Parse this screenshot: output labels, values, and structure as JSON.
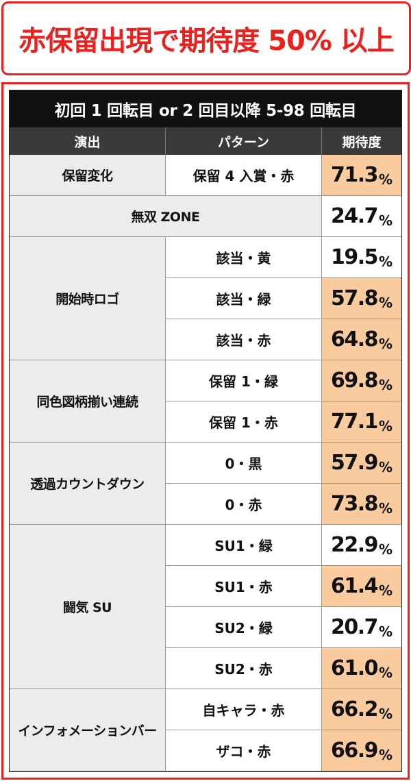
{
  "headline": "赤保留出現で期待度 50% 以上",
  "table": {
    "title": "初回 1 回転目 or 2 回目以降 5-98 回転目",
    "headers": [
      "演出",
      "パターン",
      "期待度"
    ],
    "highlight_color": "#fbcba0",
    "rows": [
      {
        "group": 0,
        "pattern": "保留 4 入賞・赤",
        "value": "71.3",
        "unit": "%",
        "highlight": true
      },
      {
        "group": 1,
        "pattern": "",
        "value": "24.7",
        "unit": "%",
        "highlight": false
      },
      {
        "group": 2,
        "pattern": "該当・黄",
        "value": "19.5",
        "unit": "%",
        "highlight": false
      },
      {
        "group": 2,
        "pattern": "該当・緑",
        "value": "57.8",
        "unit": "%",
        "highlight": true
      },
      {
        "group": 2,
        "pattern": "該当・赤",
        "value": "64.8",
        "unit": "%",
        "highlight": true
      },
      {
        "group": 3,
        "pattern": "保留 1・緑",
        "value": "69.8",
        "unit": "%",
        "highlight": true
      },
      {
        "group": 3,
        "pattern": "保留 1・赤",
        "value": "77.1",
        "unit": "%",
        "highlight": true
      },
      {
        "group": 4,
        "pattern": "0・黒",
        "value": "57.9",
        "unit": "%",
        "highlight": true
      },
      {
        "group": 4,
        "pattern": "0・赤",
        "value": "73.8",
        "unit": "%",
        "highlight": true
      },
      {
        "group": 5,
        "pattern": "SU1・緑",
        "value": "22.9",
        "unit": "%",
        "highlight": false
      },
      {
        "group": 5,
        "pattern": "SU1・赤",
        "value": "61.4",
        "unit": "%",
        "highlight": true
      },
      {
        "group": 5,
        "pattern": "SU2・緑",
        "value": "20.7",
        "unit": "%",
        "highlight": false
      },
      {
        "group": 5,
        "pattern": "SU2・赤",
        "value": "61.0",
        "unit": "%",
        "highlight": true
      },
      {
        "group": 6,
        "pattern": "自キャラ・赤",
        "value": "66.2",
        "unit": "%",
        "highlight": true
      },
      {
        "group": 6,
        "pattern": "ザコ・赤",
        "value": "66.9",
        "unit": "%",
        "highlight": true
      }
    ],
    "groups": [
      {
        "name": "保留変化",
        "span": 1,
        "full_width": false
      },
      {
        "name": "無双 ZONE",
        "span": 1,
        "full_width": true
      },
      {
        "name": "開始時ロゴ",
        "span": 3,
        "full_width": false
      },
      {
        "name": "同色図柄揃い連続",
        "span": 2,
        "full_width": false
      },
      {
        "name": "透過カウントダウン",
        "span": 2,
        "full_width": false
      },
      {
        "name": "闘気 SU",
        "span": 4,
        "full_width": false
      },
      {
        "name": "インフォメーションバー",
        "span": 2,
        "full_width": false
      }
    ]
  }
}
